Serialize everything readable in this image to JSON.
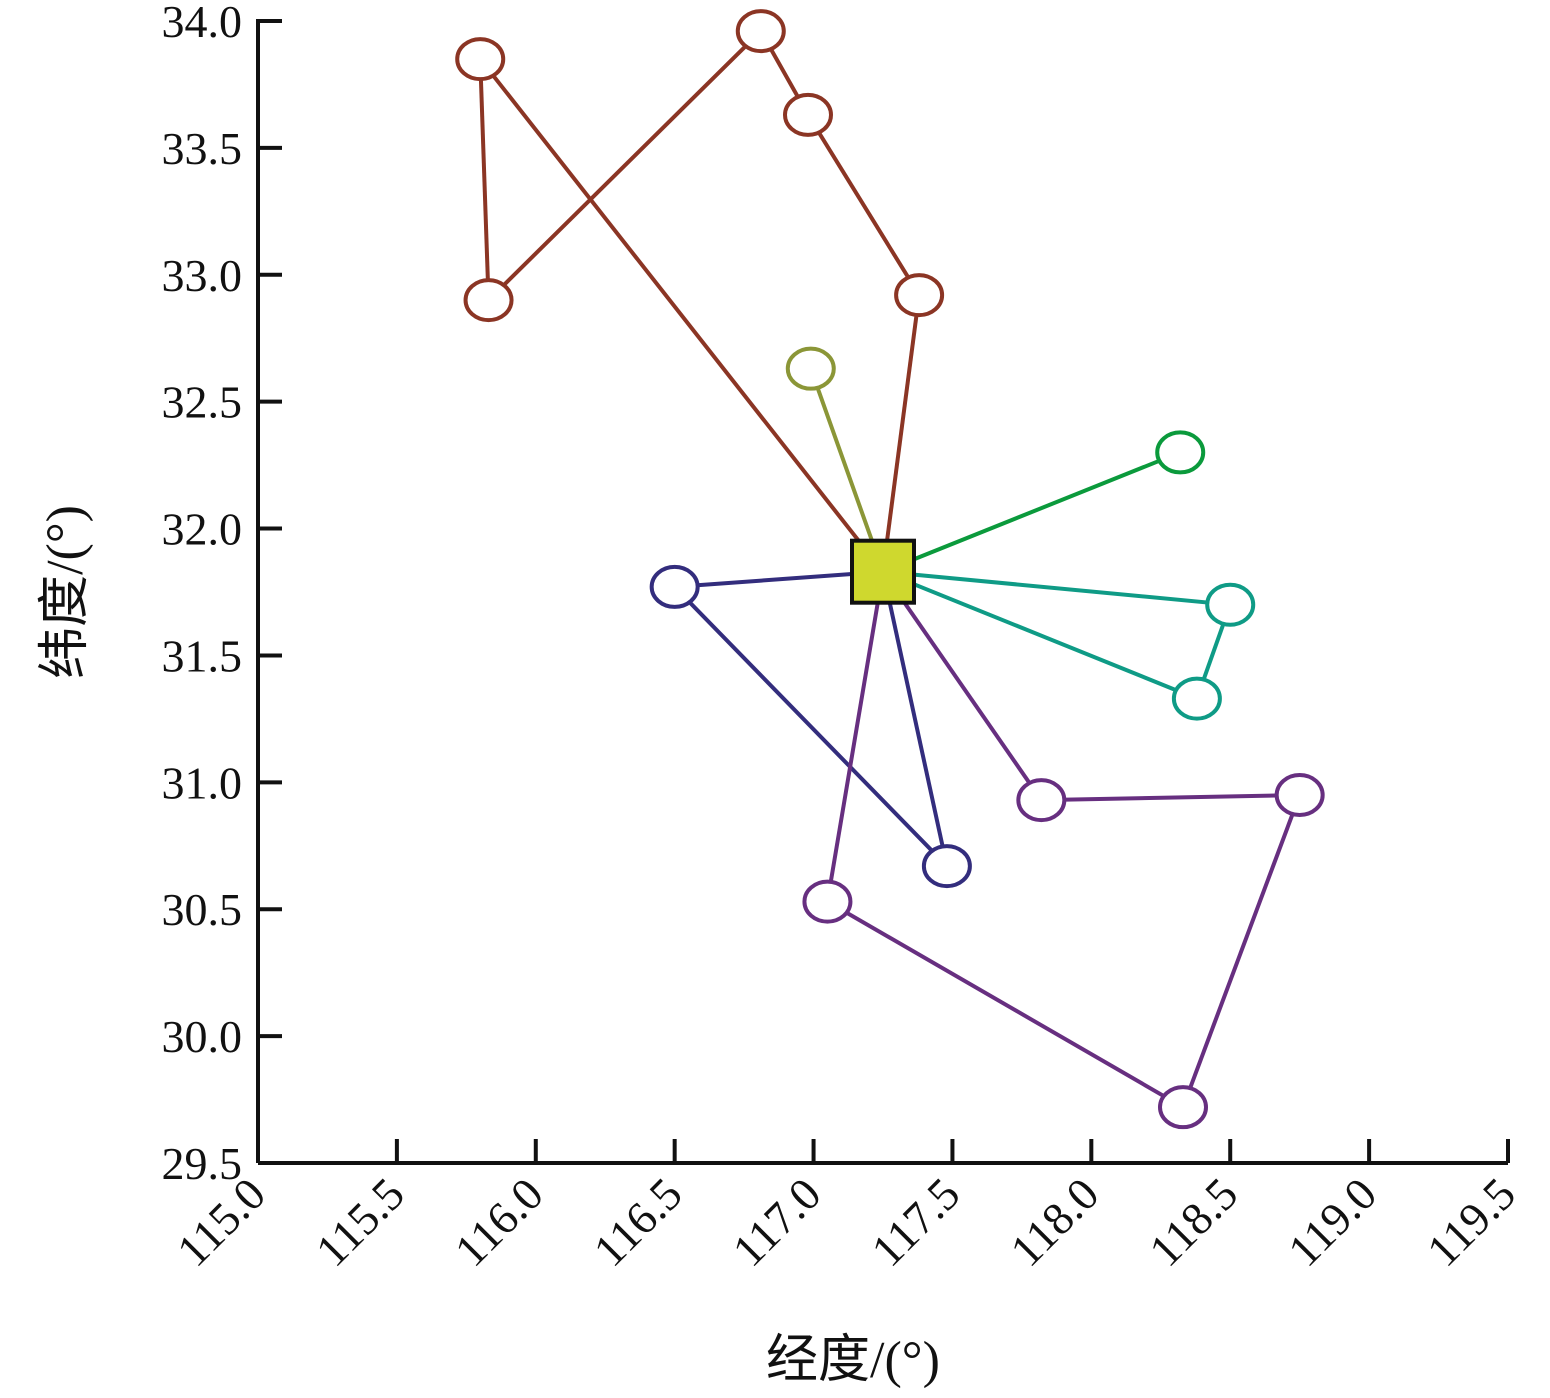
{
  "chart_data": {
    "type": "scatter",
    "xlabel": "经度/(°)",
    "ylabel": "纬度/(°)",
    "xlim": [
      115.0,
      119.5
    ],
    "ylim": [
      29.5,
      34.0
    ],
    "x_ticks": [
      "115.0",
      "115.5",
      "116.0",
      "116.5",
      "117.0",
      "117.5",
      "118.0",
      "118.5",
      "119.0",
      "119.5"
    ],
    "y_ticks": [
      "29.5",
      "30.0",
      "30.5",
      "31.0",
      "31.5",
      "32.0",
      "32.5",
      "33.0",
      "33.5",
      "34.0"
    ],
    "depot": {
      "x": 117.25,
      "y": 31.83,
      "fill": "#cfd82e",
      "stroke": "#111111",
      "marker": "square"
    },
    "series": [
      {
        "color": "#8b3524",
        "points": [
          [
            117.25,
            31.83
          ],
          [
            115.8,
            33.85
          ],
          [
            115.83,
            32.9
          ],
          [
            116.81,
            33.96
          ],
          [
            116.98,
            33.63
          ],
          [
            117.38,
            32.92
          ],
          [
            117.25,
            31.83
          ]
        ]
      },
      {
        "color": "#8b9637",
        "points": [
          [
            117.25,
            31.83
          ],
          [
            116.99,
            32.63
          ]
        ]
      },
      {
        "color": "#0b9a3c",
        "points": [
          [
            117.25,
            31.83
          ],
          [
            118.32,
            32.3
          ]
        ]
      },
      {
        "color": "#0f9b86",
        "points": [
          [
            117.25,
            31.83
          ],
          [
            118.5,
            31.7
          ],
          [
            118.38,
            31.33
          ],
          [
            117.25,
            31.83
          ]
        ]
      },
      {
        "color": "#332d7d",
        "points": [
          [
            117.25,
            31.83
          ],
          [
            116.5,
            31.77
          ],
          [
            117.48,
            30.67
          ],
          [
            117.25,
            31.83
          ]
        ]
      },
      {
        "color": "#672f80",
        "points": [
          [
            117.25,
            31.83
          ],
          [
            117.82,
            30.93
          ],
          [
            118.75,
            30.95
          ],
          [
            118.33,
            29.72
          ],
          [
            117.05,
            30.53
          ],
          [
            117.25,
            31.83
          ]
        ]
      }
    ]
  }
}
